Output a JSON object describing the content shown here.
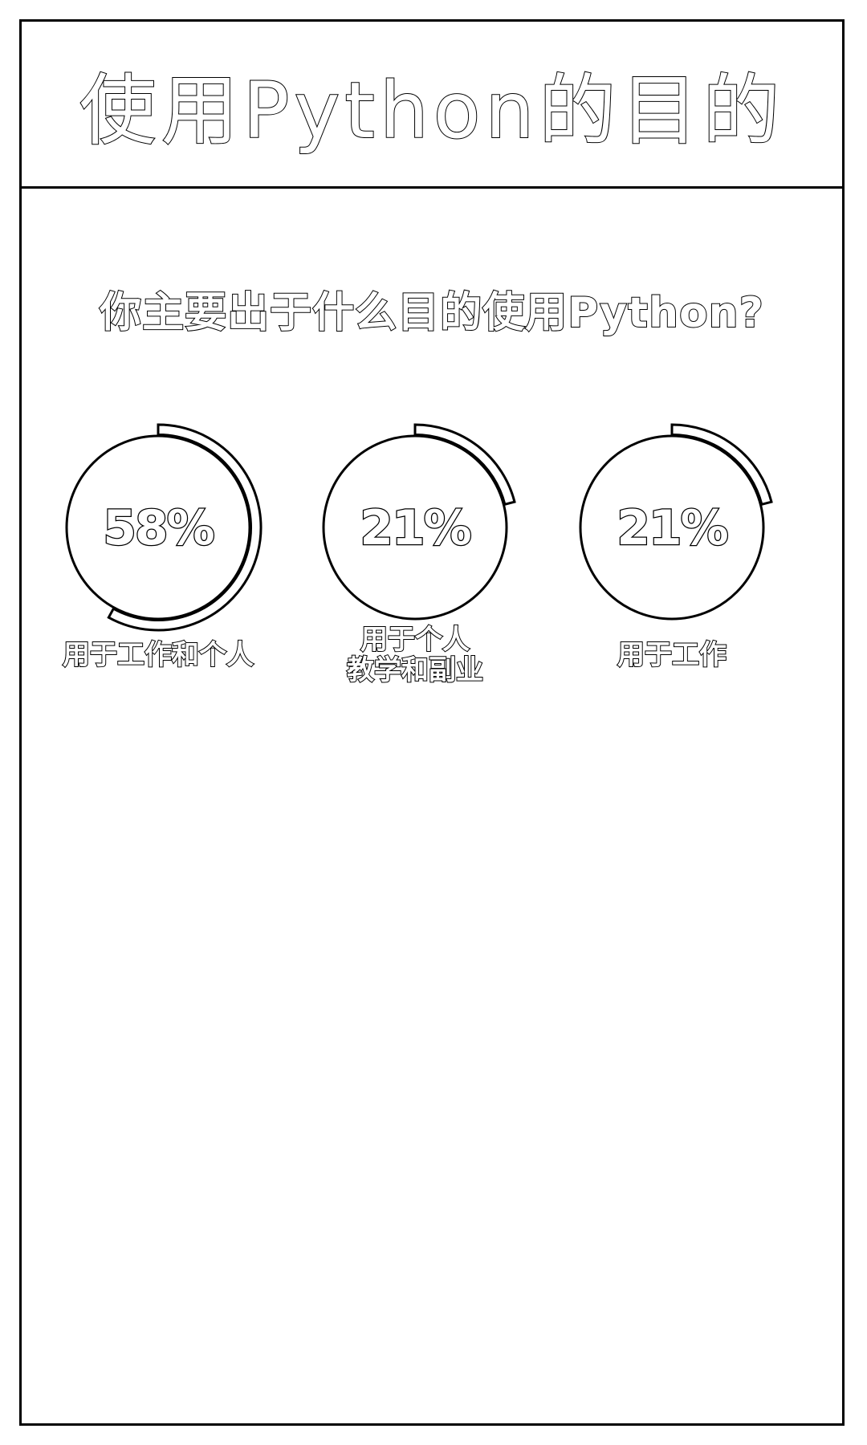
{
  "header": {
    "title": "使用Python的目的"
  },
  "chart_data": {
    "type": "donut",
    "title": "你主要出于什么目的使用Python?",
    "unit": "%",
    "categories": [
      [
        "用于工作和个人"
      ],
      [
        "用于个人",
        "教学和副业"
      ],
      [
        "用于工作"
      ]
    ],
    "values": [
      58,
      21,
      21
    ],
    "value_labels": [
      "58%",
      "21%",
      "21%"
    ]
  },
  "colors": {
    "stroke": "#000000",
    "fill": "#ffffff"
  }
}
